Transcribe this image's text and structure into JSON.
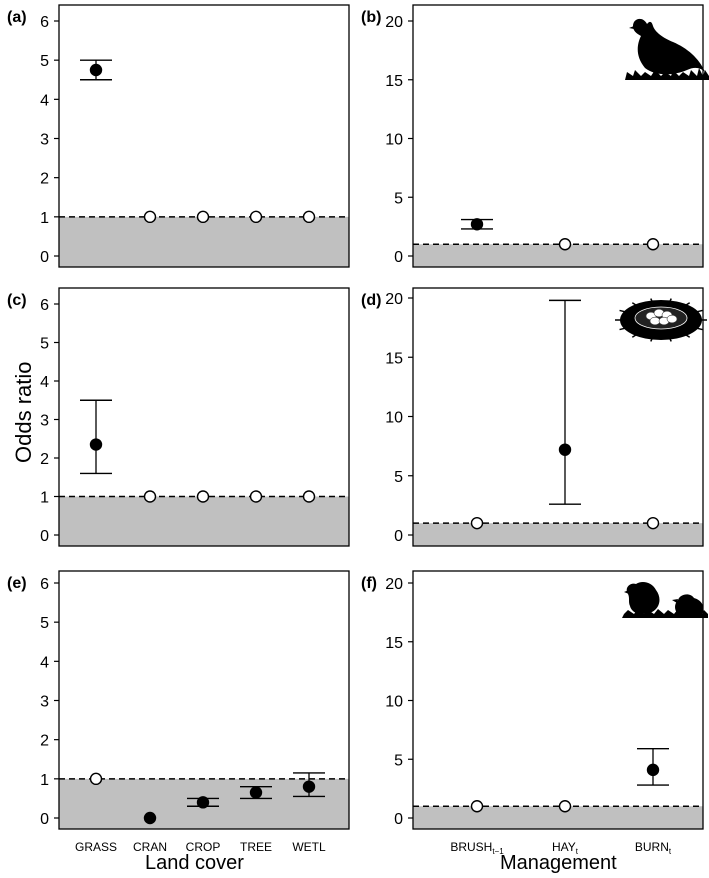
{
  "figure": {
    "ylabel": "Odds ratio",
    "xlabel_left": "Land cover",
    "xlabel_right": "Management",
    "colors": {
      "shade": "#c0c0c0",
      "axis": "#000000",
      "point_filled": "#000000",
      "point_open": "#ffffff"
    },
    "icons": {
      "b": "grouse-silhouette-icon",
      "d": "nest-with-eggs-icon",
      "f": "chicks-silhouette-icon"
    }
  },
  "chart_data": [
    {
      "panel": "(a)",
      "type": "scatter",
      "error_bars": true,
      "categories": [
        "GRASS",
        "CRAN",
        "CROP",
        "TREE",
        "WETL"
      ],
      "ylim": [
        0,
        6
      ],
      "yticks": [
        0,
        1,
        2,
        3,
        4,
        5,
        6
      ],
      "reference_line": 1,
      "points": [
        {
          "x": "GRASS",
          "y": 4.75,
          "lo": 4.5,
          "hi": 5.0,
          "filled": true
        },
        {
          "x": "CRAN",
          "y": 1.0,
          "filled": false
        },
        {
          "x": "CROP",
          "y": 1.0,
          "filled": false
        },
        {
          "x": "TREE",
          "y": 1.0,
          "filled": false
        },
        {
          "x": "WETL",
          "y": 1.0,
          "filled": false
        }
      ]
    },
    {
      "panel": "(b)",
      "type": "scatter",
      "error_bars": true,
      "categories": [
        "BRUSH_t-1",
        "HAY_t",
        "BURN_t"
      ],
      "ylim": [
        0,
        20
      ],
      "yticks": [
        0,
        5,
        10,
        15,
        20
      ],
      "reference_line": 1,
      "points": [
        {
          "x": "BRUSH_t-1",
          "y": 2.7,
          "lo": 2.3,
          "hi": 3.1,
          "filled": true
        },
        {
          "x": "HAY_t",
          "y": 1.0,
          "filled": false
        },
        {
          "x": "BURN_t",
          "y": 1.0,
          "filled": false
        }
      ]
    },
    {
      "panel": "(c)",
      "type": "scatter",
      "error_bars": true,
      "categories": [
        "GRASS",
        "CRAN",
        "CROP",
        "TREE",
        "WETL"
      ],
      "ylim": [
        0,
        6
      ],
      "yticks": [
        0,
        1,
        2,
        3,
        4,
        5,
        6
      ],
      "reference_line": 1,
      "points": [
        {
          "x": "GRASS",
          "y": 2.35,
          "lo": 1.6,
          "hi": 3.5,
          "filled": true
        },
        {
          "x": "CRAN",
          "y": 1.0,
          "filled": false
        },
        {
          "x": "CROP",
          "y": 1.0,
          "filled": false
        },
        {
          "x": "TREE",
          "y": 1.0,
          "filled": false
        },
        {
          "x": "WETL",
          "y": 1.0,
          "filled": false
        }
      ]
    },
    {
      "panel": "(d)",
      "type": "scatter",
      "error_bars": true,
      "categories": [
        "BRUSH_t-1",
        "HAY_t",
        "BURN_t"
      ],
      "ylim": [
        0,
        20
      ],
      "yticks": [
        0,
        5,
        10,
        15,
        20
      ],
      "reference_line": 1,
      "points": [
        {
          "x": "BRUSH_t-1",
          "y": 1.0,
          "filled": false
        },
        {
          "x": "HAY_t",
          "y": 7.2,
          "lo": 2.6,
          "hi": 19.8,
          "filled": true
        },
        {
          "x": "BURN_t",
          "y": 1.0,
          "filled": false
        }
      ]
    },
    {
      "panel": "(e)",
      "type": "scatter",
      "error_bars": true,
      "categories": [
        "GRASS",
        "CRAN",
        "CROP",
        "TREE",
        "WETL"
      ],
      "ylim": [
        0,
        6
      ],
      "yticks": [
        0,
        1,
        2,
        3,
        4,
        5,
        6
      ],
      "reference_line": 1,
      "points": [
        {
          "x": "GRASS",
          "y": 1.0,
          "filled": false
        },
        {
          "x": "CRAN",
          "y": 0.0,
          "filled": true
        },
        {
          "x": "CROP",
          "y": 0.4,
          "lo": 0.3,
          "hi": 0.5,
          "filled": true
        },
        {
          "x": "TREE",
          "y": 0.65,
          "lo": 0.5,
          "hi": 0.8,
          "filled": true
        },
        {
          "x": "WETL",
          "y": 0.8,
          "lo": 0.55,
          "hi": 1.15,
          "filled": true
        }
      ]
    },
    {
      "panel": "(f)",
      "type": "scatter",
      "error_bars": true,
      "categories": [
        "BRUSH_t-1",
        "HAY_t",
        "BURN_t"
      ],
      "ylim": [
        0,
        20
      ],
      "yticks": [
        0,
        5,
        10,
        15,
        20
      ],
      "reference_line": 1,
      "points": [
        {
          "x": "BRUSH_t-1",
          "y": 1.0,
          "filled": false
        },
        {
          "x": "HAY_t",
          "y": 1.0,
          "filled": false
        },
        {
          "x": "BURN_t",
          "y": 4.1,
          "lo": 2.8,
          "hi": 5.9,
          "filled": true
        }
      ]
    }
  ],
  "x_tick_labels_left": [
    "GRASS",
    "CRAN",
    "CROP",
    "TREE",
    "WETL"
  ],
  "x_tick_labels_right": [
    {
      "base": "BRUSH",
      "sub": "t−1"
    },
    {
      "base": "HAY",
      "sub": "t"
    },
    {
      "base": "BURN",
      "sub": "t"
    }
  ]
}
